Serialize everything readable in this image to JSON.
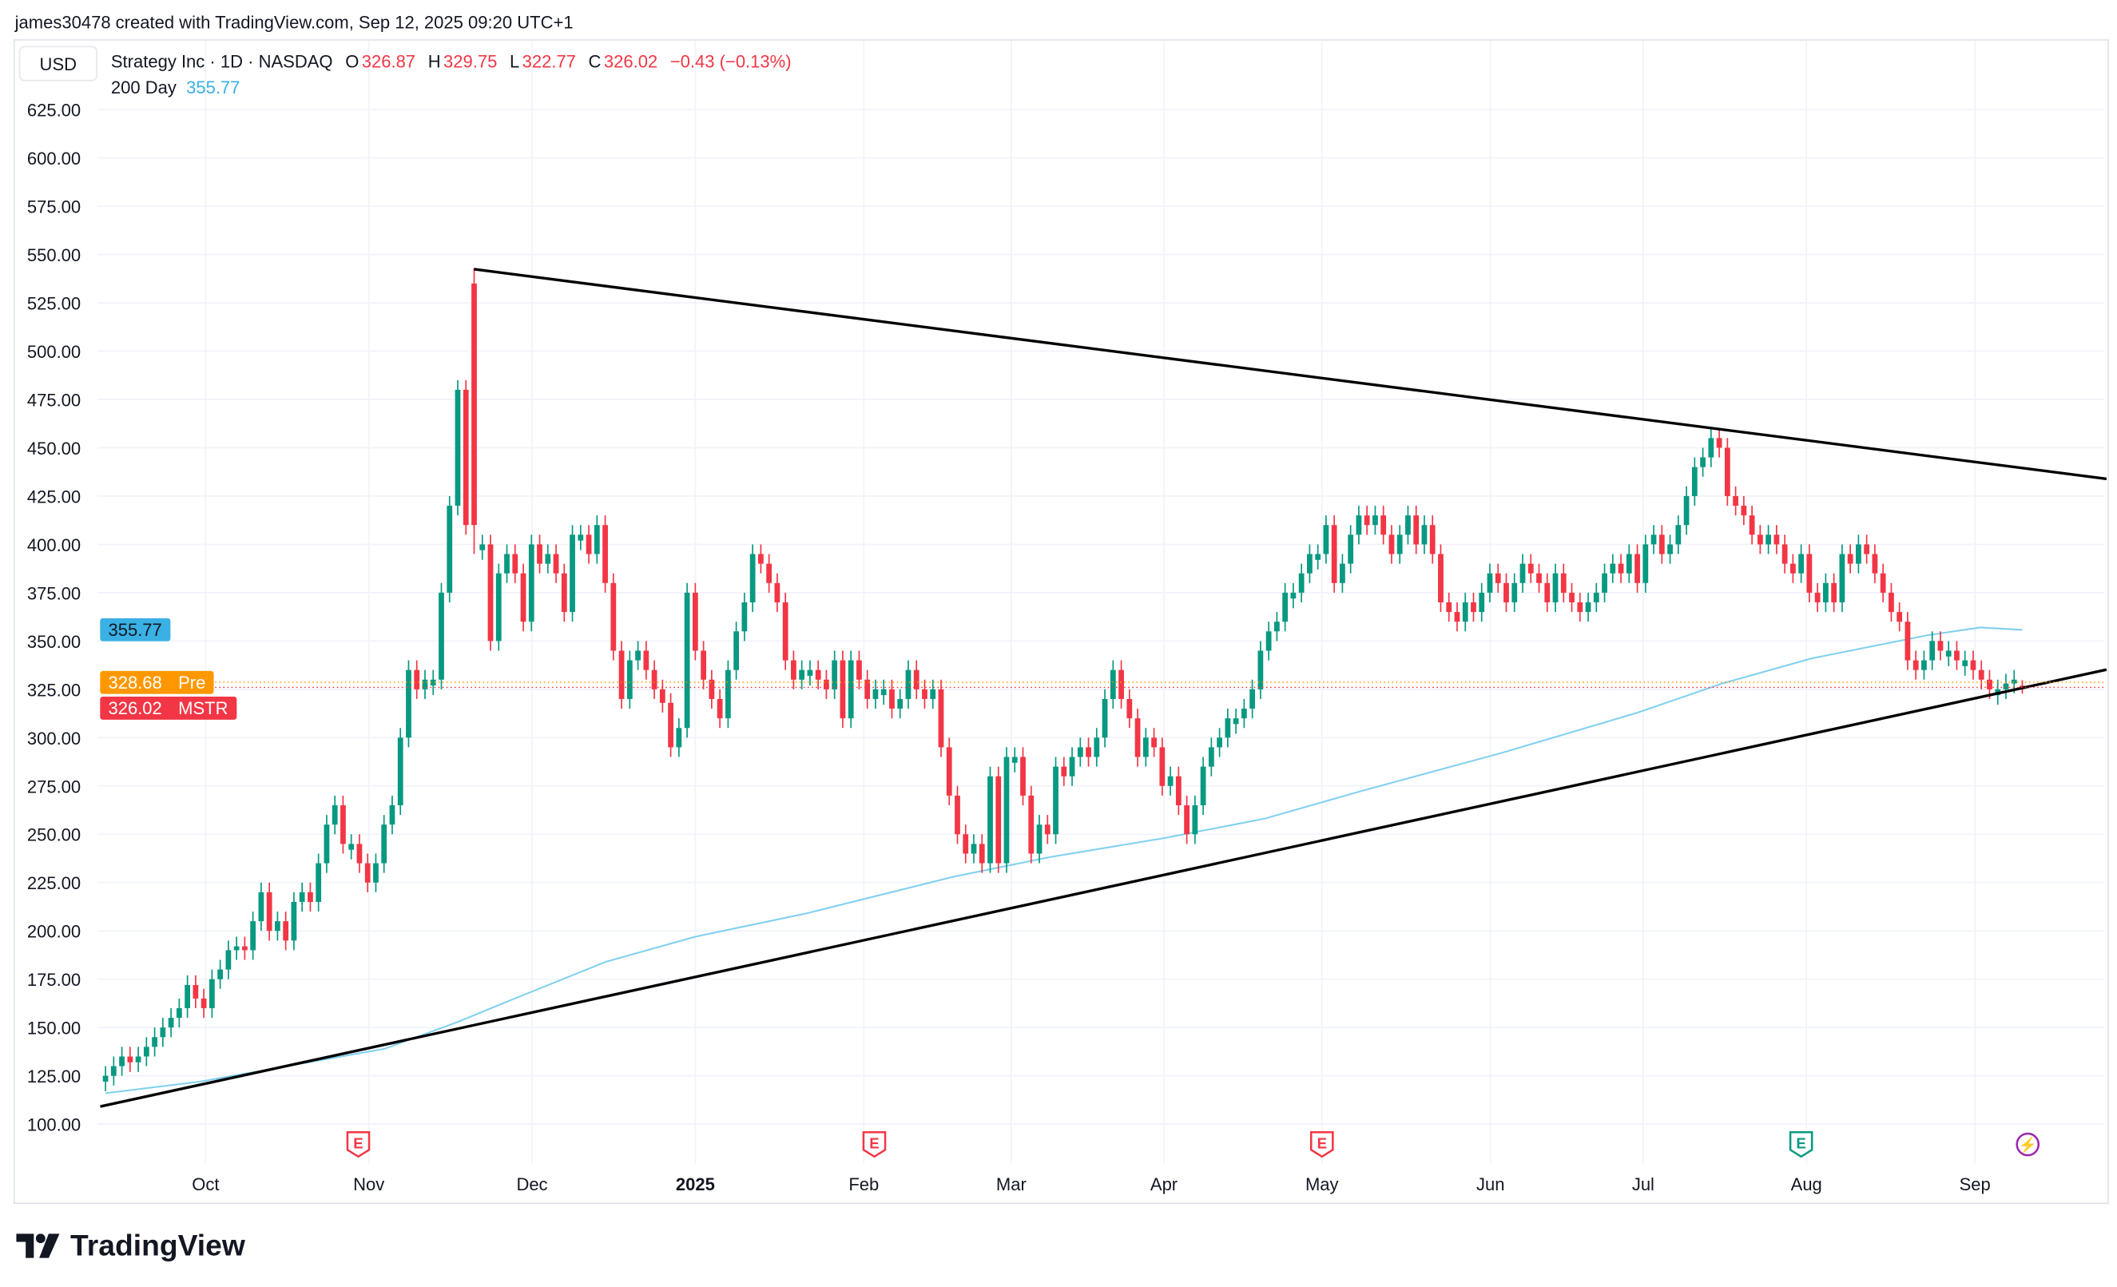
{
  "credit": "james30478 created with TradingView.com, Sep 12, 2025 09:20 UTC+1",
  "currency": "USD",
  "legend": {
    "symbol": "Strategy Inc · 1D · NASDAQ",
    "o_label": "O",
    "o": "326.87",
    "h_label": "H",
    "h": "329.75",
    "l_label": "L",
    "l": "322.77",
    "c_label": "C",
    "c": "326.02",
    "change": "−0.43 (−0.13%)"
  },
  "ma_legend": {
    "label": "200 Day",
    "value": "355.77"
  },
  "price_tags": [
    {
      "value": "355.77",
      "label": "",
      "color": "#3ab0e4"
    },
    {
      "value": "328.68",
      "label": "Pre",
      "color": "#ff9800"
    },
    {
      "value": "326.02",
      "label": "MSTR",
      "color": "#f23645"
    }
  ],
  "logo": "TradingView",
  "colors": {
    "up": "#089981",
    "down": "#f23645",
    "ma": "#7fd0ef",
    "trendline": "#000000"
  },
  "event_markers": [
    {
      "date": "2024-10-30",
      "type": "earnings",
      "icon": "E",
      "color": "#f23645"
    },
    {
      "date": "2025-02-05",
      "type": "earnings",
      "icon": "E",
      "color": "#f23645"
    },
    {
      "date": "2025-05-01",
      "type": "earnings",
      "icon": "E",
      "color": "#f23645"
    },
    {
      "date": "2025-07-31",
      "type": "earnings",
      "icon": "E",
      "color": "#089981"
    },
    {
      "date": "2025-09-11",
      "type": "lightning-icon",
      "icon": "⚡",
      "color": "#9c27b0"
    }
  ],
  "chart_data": {
    "type": "candlestick",
    "ylim": [
      100,
      625
    ],
    "yticks": [
      "625.00",
      "600.00",
      "575.00",
      "550.00",
      "525.00",
      "500.00",
      "475.00",
      "450.00",
      "425.00",
      "400.00",
      "375.00",
      "350.00",
      "325.00",
      "300.00",
      "275.00",
      "250.00",
      "225.00",
      "200.00",
      "175.00",
      "150.00",
      "125.00",
      "100.00"
    ],
    "xticks": [
      {
        "label": "Oct",
        "date": "2024-10-01"
      },
      {
        "label": "Nov",
        "date": "2024-11-01"
      },
      {
        "label": "Dec",
        "date": "2024-12-02"
      },
      {
        "label": "2025",
        "date": "2025-01-02",
        "bold": true
      },
      {
        "label": "Feb",
        "date": "2025-02-03"
      },
      {
        "label": "Mar",
        "date": "2025-03-03"
      },
      {
        "label": "Apr",
        "date": "2025-04-01"
      },
      {
        "label": "May",
        "date": "2025-05-01"
      },
      {
        "label": "Jun",
        "date": "2025-06-02"
      },
      {
        "label": "Jul",
        "date": "2025-07-01"
      },
      {
        "label": "Aug",
        "date": "2025-08-01"
      },
      {
        "label": "Sep",
        "date": "2025-09-02"
      }
    ],
    "date_range": [
      "2024-09-12",
      "2025-09-11"
    ],
    "grid": true,
    "closes": [
      125,
      130,
      135,
      132,
      135,
      140,
      145,
      150,
      155,
      160,
      172,
      165,
      160,
      175,
      180,
      190,
      192,
      190,
      205,
      220,
      200,
      205,
      195,
      215,
      220,
      215,
      235,
      255,
      265,
      245,
      245,
      235,
      225,
      235,
      255,
      265,
      300,
      335,
      325,
      330,
      330,
      375,
      420,
      480,
      410,
      400,
      400,
      350,
      385,
      395,
      385,
      360,
      400,
      390,
      395,
      385,
      365,
      405,
      405,
      395,
      410,
      380,
      345,
      320,
      340,
      345,
      335,
      325,
      318,
      295,
      305,
      375,
      345,
      330,
      320,
      310,
      335,
      355,
      370,
      395,
      390,
      380,
      370,
      340,
      330,
      335,
      335,
      330,
      325,
      340,
      310,
      340,
      330,
      320,
      325,
      325,
      315,
      320,
      335,
      325,
      320,
      325,
      295,
      270,
      250,
      240,
      245,
      235,
      280,
      235,
      290,
      290,
      270,
      240,
      255,
      250,
      285,
      280,
      290,
      295,
      290,
      300,
      320,
      335,
      320,
      310,
      290,
      300,
      295,
      275,
      280,
      265,
      250,
      265,
      285,
      295,
      300,
      310,
      310,
      315,
      325,
      345,
      355,
      360,
      375,
      375,
      385,
      395,
      395,
      410,
      380,
      390,
      405,
      415,
      410,
      415,
      405,
      395,
      405,
      415,
      400,
      410,
      395,
      370,
      365,
      360,
      370,
      365,
      375,
      385,
      380,
      370,
      380,
      390,
      385,
      380,
      370,
      385,
      375,
      370,
      365,
      370,
      375,
      385,
      390,
      385,
      395,
      380,
      400,
      405,
      395,
      400,
      410,
      425,
      440,
      445,
      455,
      450,
      425,
      420,
      415,
      405,
      400,
      405,
      400,
      390,
      385,
      395,
      375,
      370,
      380,
      370,
      395,
      390,
      400,
      395,
      385,
      375,
      365,
      360,
      340,
      335,
      340,
      350,
      345,
      345,
      340,
      340,
      335,
      330,
      325,
      325,
      328,
      330,
      326.02
    ],
    "peak_candle": {
      "date": "2024-11-21",
      "open": 535,
      "high": 543,
      "low": 395,
      "close": 410
    },
    "last_candle": {
      "open": 326.87,
      "high": 329.75,
      "low": 322.77,
      "close": 326.02
    },
    "ma200": {
      "name": "200 Day",
      "points": [
        [
          "2024-09-12",
          116
        ],
        [
          "2024-09-30",
          122
        ],
        [
          "2024-11-04",
          139
        ],
        [
          "2024-11-18",
          153
        ],
        [
          "2024-11-26",
          162
        ],
        [
          "2024-12-16",
          184
        ],
        [
          "2025-01-02",
          197
        ],
        [
          "2025-01-23",
          209
        ],
        [
          "2025-02-20",
          228
        ],
        [
          "2025-03-10",
          238
        ],
        [
          "2025-04-01",
          248
        ],
        [
          "2025-04-20",
          258
        ],
        [
          "2025-05-08",
          272
        ],
        [
          "2025-06-04",
          292
        ],
        [
          "2025-06-30",
          313
        ],
        [
          "2025-07-16",
          328
        ],
        [
          "2025-08-02",
          341
        ],
        [
          "2025-08-24",
          353
        ],
        [
          "2025-09-03",
          357
        ],
        [
          "2025-09-11",
          355.77
        ]
      ]
    },
    "trendlines": [
      {
        "name": "",
        "from": [
          "2024-11-21",
          542.4
        ],
        "to": [
          "2025-09-27",
          433.9
        ]
      },
      {
        "name": "",
        "from": [
          "2024-09-11",
          109.1
        ],
        "to": [
          "2025-09-27",
          335.2
        ]
      }
    ]
  }
}
